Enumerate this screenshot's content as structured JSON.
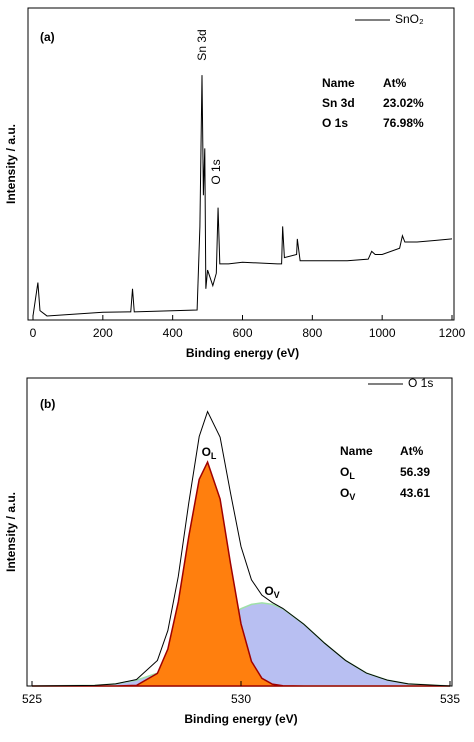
{
  "chart_data": [
    {
      "type": "line",
      "panel_label": "(a)",
      "xlabel": "Binding energy (eV)",
      "ylabel": "Intensity / a.u.",
      "xlim": [
        0,
        1200
      ],
      "xticks": [
        0,
        200,
        400,
        600,
        800,
        1000,
        1200
      ],
      "ylim": [
        0,
        100
      ],
      "legend": "upper right",
      "x": [
        0,
        14,
        20,
        40,
        200,
        280,
        285,
        290,
        470,
        478,
        484,
        488,
        492,
        495,
        500,
        515,
        525,
        530,
        535,
        560,
        600,
        700,
        712,
        715,
        720,
        755,
        757,
        765,
        900,
        960,
        970,
        980,
        1000,
        1050,
        1058,
        1065,
        1100,
        1150,
        1200
      ],
      "series": [
        {
          "name": "SnO₂",
          "color": "#000000",
          "values": [
            1.3,
            12,
            3,
            1.3,
            2.5,
            2.6,
            10,
            2.6,
            3.2,
            30,
            78.5,
            40,
            55,
            10,
            16,
            11,
            15,
            36,
            18,
            18,
            18.5,
            18,
            18,
            30,
            20,
            21,
            26,
            19,
            19,
            19.5,
            22,
            21,
            21,
            23,
            27,
            25,
            25,
            25.5,
            26
          ]
        }
      ],
      "peak_labels": [
        "Sn 3d",
        "O 1s"
      ],
      "table": {
        "header": [
          "Name",
          "At%"
        ],
        "rows": [
          [
            "Sn 3d",
            "23.02%"
          ],
          [
            "O 1s",
            "76.98%"
          ]
        ]
      }
    },
    {
      "type": "line",
      "panel_label": "(b)",
      "xlabel": "Binding energy (eV)",
      "ylabel": "Intensity / a.u.",
      "xlim": [
        525,
        535
      ],
      "xticks": [
        525,
        530,
        535
      ],
      "ylim": [
        0,
        100
      ],
      "legend": "upper right",
      "x": [
        525,
        526.5,
        527,
        527.5,
        528,
        528.25,
        528.5,
        528.75,
        529,
        529.2,
        529.5,
        529.75,
        530,
        530.25,
        530.5,
        530.75,
        531,
        531.5,
        532,
        532.5,
        533,
        533.5,
        534,
        535
      ],
      "series": [
        {
          "name": "O 1s",
          "color": "#000000",
          "values": [
            0,
            0.2,
            0.7,
            2.1,
            8.3,
            18.0,
            35.6,
            59.4,
            81.0,
            89.1,
            80.8,
            62.6,
            45.3,
            34.5,
            29.5,
            27.1,
            25.2,
            20.1,
            13.9,
            8.3,
            4.2,
            1.9,
            0.7,
            0
          ]
        }
      ],
      "components": [
        {
          "label": {
            "text": "O",
            "sub": "V"
          },
          "color": "#b8bff2",
          "edgecolor": "#9fe0a8",
          "values": [
            0,
            0.2,
            0.7,
            1.9,
            4.2,
            6.0,
            8.3,
            10.9,
            13.9,
            16.4,
            20.1,
            22.9,
            25.1,
            26.5,
            27,
            26.5,
            25.1,
            20.1,
            13.9,
            8.3,
            4.2,
            1.9,
            0.7,
            0
          ]
        },
        {
          "label": {
            "text": "O",
            "sub": "L"
          },
          "color": "#ff7f0e",
          "edgecolor": "#a00000",
          "values": [
            0,
            0,
            0,
            0.2,
            4.1,
            12.0,
            27.3,
            48.5,
            67.1,
            72.7,
            60.7,
            39.7,
            20.2,
            8.0,
            2.5,
            0.6,
            0.1,
            0,
            0,
            0,
            0,
            0,
            0,
            0
          ]
        }
      ],
      "table": {
        "header": [
          "Name",
          "At%"
        ],
        "rows": [
          [
            {
              "text": "O",
              "sub": "L"
            },
            "56.39"
          ],
          [
            {
              "text": "O",
              "sub": "V"
            },
            "43.61"
          ]
        ]
      }
    }
  ]
}
